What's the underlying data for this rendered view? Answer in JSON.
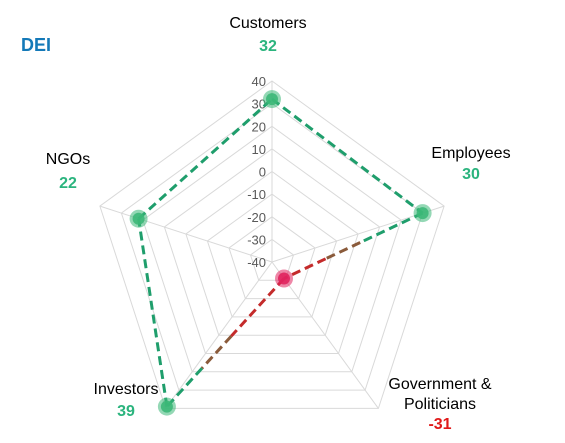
{
  "page": {
    "corner_title": "DEI"
  },
  "colors": {
    "positive": "#2bb47e",
    "negative": "#e01919",
    "positive_line": "#1f9e6c",
    "negative_line": "#c42b2b",
    "transition_line": "#8a5a3a",
    "marker_positive": "#3cb878",
    "marker_negative": "#e0245e",
    "grid": "#d9d9d9",
    "tick_text": "#595959",
    "label_text": "#000000",
    "title": "#1479b8"
  },
  "chart_data": {
    "type": "radar",
    "title": "DEI",
    "rlim": [
      -40,
      40
    ],
    "rticks": [
      40,
      30,
      20,
      10,
      0,
      -10,
      -20,
      -30,
      -40
    ],
    "rtick_labels": [
      "40",
      "30",
      "20",
      "10",
      "0",
      "-10",
      "-20",
      "-30",
      "-40"
    ],
    "grid": true,
    "categories": [
      {
        "name": "Customers",
        "value": 32,
        "value_label": "32"
      },
      {
        "name": "Employees",
        "value": 30,
        "value_label": "30"
      },
      {
        "name": "Government & Politicians",
        "value": -31,
        "value_label": "-31"
      },
      {
        "name": "Investors",
        "value": 39,
        "value_label": "39"
      },
      {
        "name": "NGOs",
        "value": 22,
        "value_label": "22"
      }
    ]
  }
}
